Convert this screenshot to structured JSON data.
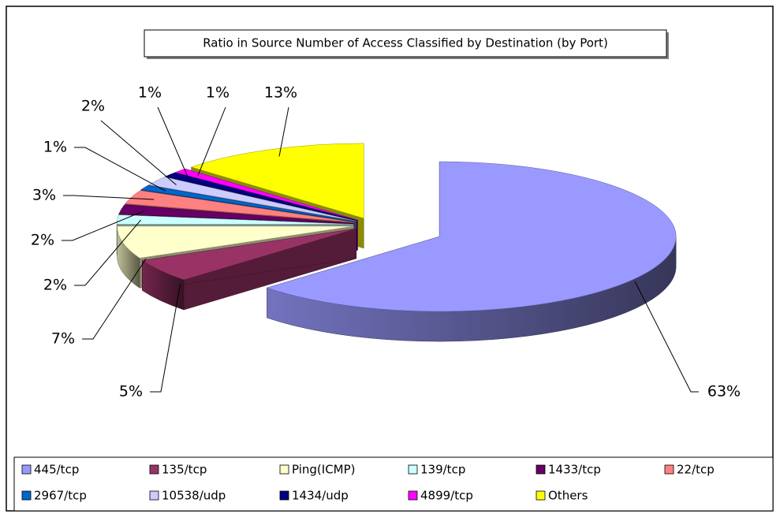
{
  "chart_data": {
    "type": "pie",
    "title": "Ratio in Source Number of Access Classified by Destination (by Port)",
    "categories": [
      "445/tcp",
      "135/tcp",
      "Ping(ICMP)",
      "139/tcp",
      "1433/tcp",
      "22/tcp",
      "2967/tcp",
      "10538/udp",
      "1434/udp",
      "4899/tcp",
      "Others"
    ],
    "values": [
      63,
      5,
      7,
      2,
      2,
      3,
      1,
      2,
      1,
      1,
      13
    ],
    "value_labels": [
      "63%",
      "5%",
      "7%",
      "2%",
      "2%",
      "3%",
      "1%",
      "2%",
      "1%",
      "1%",
      "13%"
    ],
    "colors": [
      "#9999ff",
      "#993366",
      "#ffffcc",
      "#ccffff",
      "#660066",
      "#ff8080",
      "#0066cc",
      "#ccccff",
      "#000080",
      "#ff00ff",
      "#ffff00"
    ],
    "legend": "bottom"
  }
}
